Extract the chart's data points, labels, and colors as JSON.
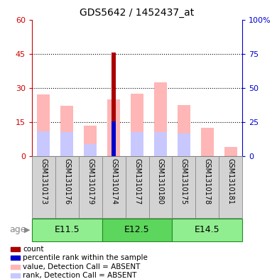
{
  "title": "GDS5642 / 1452437_at",
  "samples": [
    "GSM1310173",
    "GSM1310176",
    "GSM1310179",
    "GSM1310174",
    "GSM1310177",
    "GSM1310180",
    "GSM1310175",
    "GSM1310178",
    "GSM1310181"
  ],
  "age_groups": [
    {
      "label": "E11.5",
      "start": 0,
      "end": 3
    },
    {
      "label": "E12.5",
      "start": 3,
      "end": 6
    },
    {
      "label": "E14.5",
      "start": 6,
      "end": 9
    }
  ],
  "pink_values": [
    27.0,
    22.0,
    13.5,
    25.0,
    27.5,
    32.5,
    22.5,
    12.5,
    4.0
  ],
  "light_blue_values": [
    18.0,
    17.5,
    9.0,
    0,
    17.5,
    17.5,
    16.5,
    0,
    0
  ],
  "red_values": [
    0,
    0,
    0,
    45.5,
    0,
    0,
    0,
    0,
    0
  ],
  "blue_values": [
    0,
    0,
    0,
    25.5,
    0,
    0,
    0,
    0,
    0
  ],
  "ylim_left": [
    0,
    60
  ],
  "ylim_right": [
    0,
    100
  ],
  "yticks_left": [
    0,
    15,
    30,
    45,
    60
  ],
  "yticks_right": [
    0,
    25,
    50,
    75,
    100
  ],
  "yticklabels_right": [
    "0",
    "25",
    "50",
    "75",
    "100%"
  ],
  "background_color": "#ffffff",
  "pink_color": "#ffb6b6",
  "lightblue_color": "#c8c8ff",
  "red_color": "#aa0000",
  "blue_color": "#0000cc",
  "left_tick_color": "#cc0000",
  "right_tick_color": "#0000cc",
  "age_green_light": "#90ee90",
  "age_green_mid": "#5cd65c",
  "legend_items": [
    {
      "color": "#aa0000",
      "label": "count"
    },
    {
      "color": "#0000cc",
      "label": "percentile rank within the sample"
    },
    {
      "color": "#ffb6b6",
      "label": "value, Detection Call = ABSENT"
    },
    {
      "color": "#c8c8ff",
      "label": "rank, Detection Call = ABSENT"
    }
  ]
}
